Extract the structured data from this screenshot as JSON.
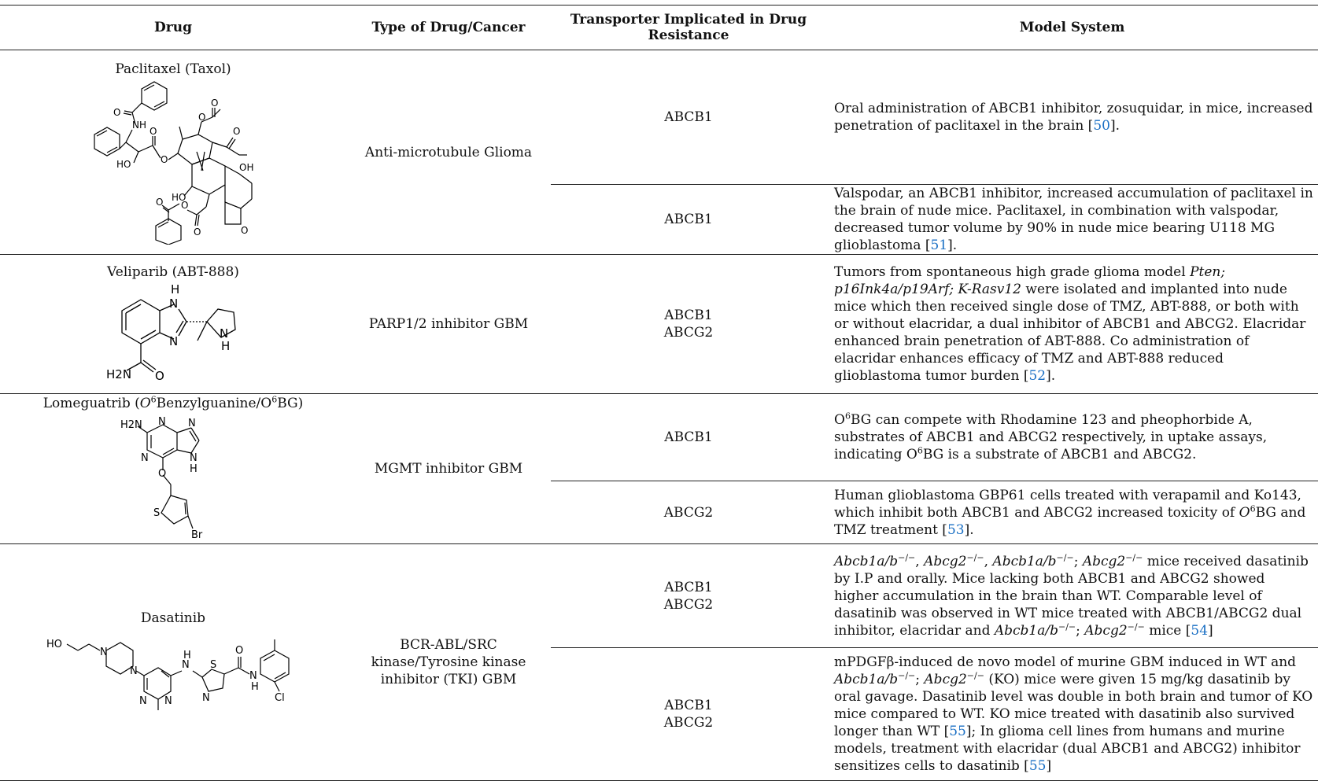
{
  "headers": {
    "drug": "Drug",
    "type": "Type of Drug/Cancer",
    "transporter_line1": "Transporter Implicated in Drug",
    "transporter_line2": "Resistance",
    "model": "Model System"
  },
  "rows": {
    "paclitaxel": {
      "drug": "Paclitaxel (Taxol)",
      "type": "Anti-microtubule Glioma",
      "entries": [
        {
          "transporter": "ABCB1",
          "model_pre": "Oral administration of ABCB1 inhibitor, zosuquidar, in mice, increased penetration of paclitaxel in the brain [",
          "ref": "50",
          "model_post": "]."
        },
        {
          "transporter": "ABCB1",
          "model_pre": "Valspodar, an ABCB1 inhibitor, increased accumulation of paclitaxel in the brain of nude mice. Paclitaxel, in combination with valspodar, decreased tumor volume by 90% in nude mice bearing U118 MG glioblastoma [",
          "ref": "51",
          "model_post": "]."
        }
      ]
    },
    "veliparib": {
      "drug": "Veliparib (ABT-888)",
      "type": "PARP1/2 inhibitor GBM",
      "transporter_1": "ABCB1",
      "transporter_2": "ABCG2",
      "model_pre": "Tumors from spontaneous high grade glioma model ",
      "model_italic": "Pten; p16Ink4a/p19Arf; K-Rasv12",
      "model_mid": " were isolated and implanted into nude mice which then received single dose of TMZ, ABT-888, or both with or without elacridar, a dual inhibitor of ABCB1 and ABCG2. Elacridar enhanced brain penetration of ABT-888. Co administration of elacridar enhances efficacy of TMZ and ABT-888 reduced glioblastoma tumor burden [",
      "ref": "52",
      "model_post": "]."
    },
    "lomeguatrib": {
      "drug_pre": "Lomeguatrib (",
      "drug_italic_o": "O",
      "drug_sup": "6",
      "drug_mid": "Benzylguanine/O",
      "drug_sup2": "6",
      "drug_post": "BG)",
      "type": "MGMT inhibitor GBM",
      "entry1": {
        "transporter": "ABCB1",
        "o": "O",
        "sup": "6",
        "text_a": "BG can compete with Rhodamine 123 and pheophorbide A, substrates of ABCB1 and ABCG2 respectively, in uptake assays, indicating O",
        "sup_b": "6",
        "text_b": "BG is a substrate of ABCB1 and ABCG2."
      },
      "entry2": {
        "transporter": "ABCG2",
        "text_a": "Human glioblastoma GBP61 cells treated with verapamil and Ko143, which inhibit both ABCB1 and ABCG2 increased toxicity of ",
        "o": "O",
        "sup": "6",
        "text_b": "BG and TMZ treatment [",
        "ref": "53",
        "text_c": "]."
      }
    },
    "dasatinib": {
      "drug": "Dasatinib",
      "type_line1": "BCR-ABL/SRC",
      "type_line2": "kinase/Tyrosine kinase",
      "type_line3": "inhibitor (TKI) GBM",
      "entry1": {
        "transporter_1": "ABCB1",
        "transporter_2": "ABCG2",
        "g1": "Abcb1a/b",
        "ko": "−/−",
        "sep1": ", ",
        "g2": "Abcg2",
        "sep2": ", ",
        "g3": "Abcb1a/b",
        "sep3": "; ",
        "g4": "Abcg2",
        "text_a": " mice received dasatinib by I.P and orally. Mice lacking both ABCB1 and ABCG2 showed higher accumulation in the brain than WT. Comparable level of dasatinib was observed in WT mice treated with ABCB1/ABCG2 dual inhibitor, elacridar and ",
        "g5": "Abcb1a/b",
        "sep4": "; ",
        "g6": "Abcg2",
        "text_b": " mice [",
        "ref": "54",
        "text_c": "]"
      },
      "entry2": {
        "transporter_1": "ABCB1",
        "transporter_2": "ABCG2",
        "text_a": "mPDGFβ-induced de novo model of murine GBM induced in WT and ",
        "g1": "Abcb1a/b",
        "ko": "−/−",
        "sep1": "; ",
        "g2": "Abcg2",
        "text_b": " (KO) mice were given 15 mg/kg dasatinib by oral gavage. Dasatinib level was double in both brain and tumor of KO mice compared to WT. KO mice treated with dasatinib also survived longer than WT [",
        "ref1": "55",
        "text_c": "]; In glioma cell lines from humans and murine models, treatment with elacridar (dual ABCB1 and ABCG2) inhibitor sensitizes cells to dasatinib [",
        "ref2": "55",
        "text_d": "]"
      }
    }
  },
  "structure_labels": {
    "paclitaxel": {
      "nh": "NH",
      "o": "O",
      "ho": "HO",
      "oh": "OH"
    },
    "veliparib": {
      "h": "H",
      "n": "N",
      "nh": "H",
      "h2n": "H2N",
      "o": "O"
    },
    "lomeguatrib": {
      "h2n": "H2N",
      "n": "N",
      "h": "H",
      "o": "O",
      "s": "S",
      "br": "Br"
    },
    "dasatinib": {
      "ho": "HO",
      "n": "N",
      "s": "S",
      "h": "H",
      "o": "O",
      "cl": "Cl"
    }
  }
}
